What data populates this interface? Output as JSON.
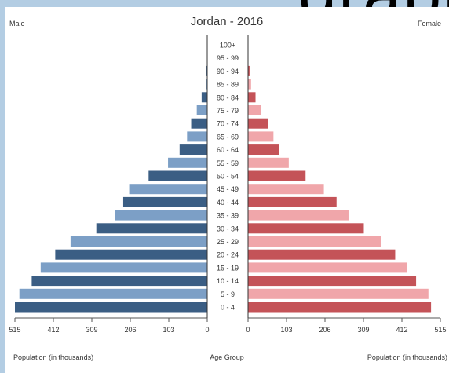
{
  "background_title_fragment": "graph",
  "chart_data": {
    "type": "bar",
    "title": "Jordan - 2016",
    "left_label": "Male",
    "right_label": "Female",
    "center_xlabel": "Age Group",
    "left_xlabel": "Population (in thousands)",
    "right_xlabel": "Population (in thousands)",
    "xlim": [
      0,
      515
    ],
    "left_ticks": [
      "515",
      "412",
      "309",
      "206",
      "103",
      "0"
    ],
    "right_ticks": [
      "0",
      "103",
      "206",
      "309",
      "412",
      "515"
    ],
    "categories": [
      "0 - 4",
      "5 - 9",
      "10 - 14",
      "15 - 19",
      "20 - 24",
      "25 - 29",
      "30 - 34",
      "35 - 39",
      "40 - 44",
      "45 - 49",
      "50 - 54",
      "55 - 59",
      "60 - 64",
      "65 - 69",
      "70 - 74",
      "75 - 79",
      "80 - 84",
      "85 - 89",
      "90 - 94",
      "95 - 99",
      "100+"
    ],
    "series": [
      {
        "name": "Male",
        "values": [
          515,
          503,
          470,
          446,
          407,
          366,
          297,
          248,
          225,
          209,
          157,
          105,
          74,
          54,
          43,
          28,
          15,
          4,
          2,
          0,
          0
        ],
        "colors": [
          "#3b5e84",
          "#7c9fc6"
        ]
      },
      {
        "name": "Female",
        "values": [
          490,
          483,
          450,
          425,
          394,
          356,
          310,
          269,
          237,
          203,
          154,
          109,
          84,
          68,
          54,
          34,
          20,
          8,
          4,
          1,
          0
        ],
        "colors": [
          "#c45358",
          "#f0a6aa"
        ]
      }
    ],
    "grid": false
  }
}
